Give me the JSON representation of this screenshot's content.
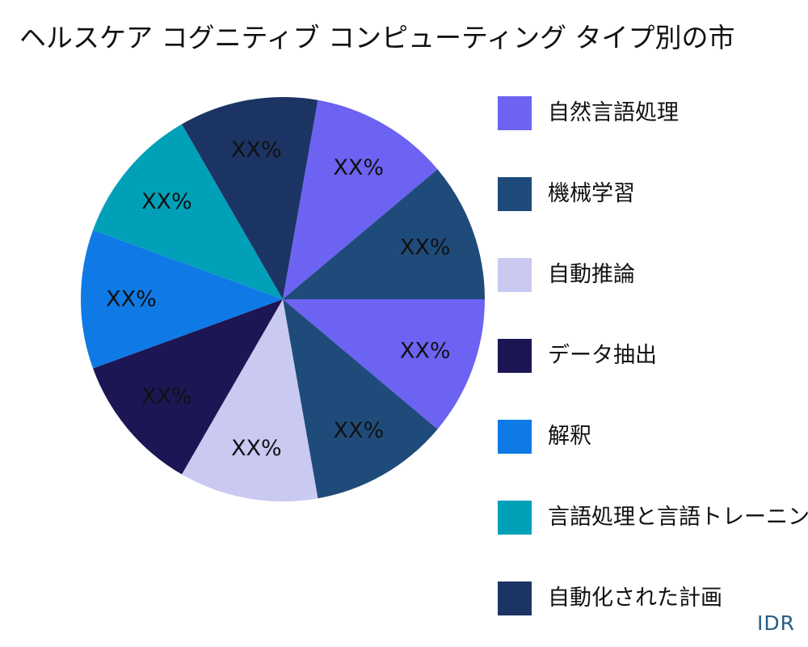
{
  "chart_data": {
    "type": "pie",
    "title": "ヘルスケア コグニティブ コンピューティング タイプ別の市",
    "slices": [
      {
        "label": "自然言語処理",
        "value": 11.11,
        "display": "XX%",
        "color": "#6c63f2"
      },
      {
        "label": "機械学習",
        "value": 11.11,
        "display": "XX%",
        "color": "#1f4b7a"
      },
      {
        "label": "自動推論",
        "value": 11.11,
        "display": "XX%",
        "color": "#c9c9f2"
      },
      {
        "label": "データ抽出",
        "value": 11.11,
        "display": "XX%",
        "color": "#1d1654"
      },
      {
        "label": "解釈",
        "value": 11.11,
        "display": "XX%",
        "color": "#0f7ae5"
      },
      {
        "label": "言語処理と言語トレーニング",
        "value": 11.11,
        "display": "XX%",
        "color": "#00a0b8"
      },
      {
        "label": "自動化された計画",
        "value": 11.11,
        "display": "XX%",
        "color": "#1c3464"
      },
      {
        "label": "自然言語処理",
        "value": 11.11,
        "display": "XX%",
        "color": "#6c63f2"
      },
      {
        "label": "機械学習",
        "value": 11.11,
        "display": "XX%",
        "color": "#1f4b7a"
      }
    ],
    "legend": [
      {
        "label": "自然言語処理",
        "color": "#6c63f2"
      },
      {
        "label": "機械学習",
        "color": "#1f4b7a"
      },
      {
        "label": "自動推論",
        "color": "#c9c9f2"
      },
      {
        "label": "データ抽出",
        "color": "#1d1654"
      },
      {
        "label": "解釈",
        "color": "#0f7ae5"
      },
      {
        "label": "言語処理と言語トレーニング",
        "color": "#00a0b8"
      },
      {
        "label": "自動化された計画",
        "color": "#1c3464"
      }
    ],
    "legend_position": "right"
  },
  "watermark": "IDR"
}
